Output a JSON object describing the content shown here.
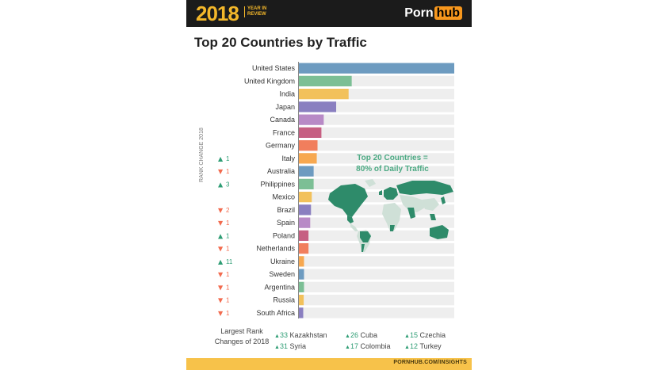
{
  "header": {
    "year": "2018",
    "year_in_review": "YEAR IN REVIEW",
    "brand_part1": "Porn",
    "brand_part2": "hub"
  },
  "title": "Top 20 Countries by Traffic",
  "callout": {
    "line1": "Top 20 Countries =",
    "line2": "80% of Daily Traffic"
  },
  "rank_axis_label": "RANK CHANGE 2018",
  "largest_rank_label": {
    "line1": "Largest Rank",
    "line2": "Changes of 2018"
  },
  "largest_changes": [
    {
      "change": "33",
      "country": "Kazakhstan"
    },
    {
      "change": "31",
      "country": "Syria"
    },
    {
      "change": "26",
      "country": "Cuba"
    },
    {
      "change": "17",
      "country": "Colombia"
    },
    {
      "change": "15",
      "country": "Czechia"
    },
    {
      "change": "12",
      "country": "Turkey"
    }
  ],
  "footer": "PORNHUB.COM/INSIGHTS",
  "colors": {
    "up": "#2e9d74",
    "down": "#f26b4f",
    "map_highlight": "#2e8b6a",
    "map_other": "#cfe0d7"
  },
  "chart_data": {
    "type": "bar",
    "orientation": "horizontal",
    "categories": [
      "United States",
      "United Kingdom",
      "India",
      "Japan",
      "Canada",
      "France",
      "Germany",
      "Italy",
      "Australia",
      "Philippines",
      "Mexico",
      "Brazil",
      "Spain",
      "Poland",
      "Netherlands",
      "Ukraine",
      "Sweden",
      "Argentina",
      "Russia",
      "South Africa"
    ],
    "values": [
      100,
      34,
      32,
      24,
      16,
      14.5,
      12,
      11.5,
      9.5,
      9.5,
      8.3,
      7.8,
      7.3,
      6.2,
      6.2,
      3.3,
      3.3,
      3.3,
      3.1,
      2.8
    ],
    "bar_colors": [
      "#6d9bc0",
      "#7cbf95",
      "#f2c15b",
      "#8a7fc0",
      "#b88ac6",
      "#c65f82",
      "#f17e5d",
      "#f7a850",
      "#6d9bc0",
      "#7cbf95",
      "#f2c15b",
      "#8a7fc0",
      "#b88ac6",
      "#c65f82",
      "#f17e5d",
      "#f7a850",
      "#6d9bc0",
      "#7cbf95",
      "#f2c15b",
      "#8a7fc0"
    ],
    "rank_change": [
      {
        "dir": "",
        "value": ""
      },
      {
        "dir": "",
        "value": ""
      },
      {
        "dir": "",
        "value": ""
      },
      {
        "dir": "",
        "value": ""
      },
      {
        "dir": "",
        "value": ""
      },
      {
        "dir": "",
        "value": ""
      },
      {
        "dir": "",
        "value": ""
      },
      {
        "dir": "up",
        "value": "1"
      },
      {
        "dir": "down",
        "value": "1"
      },
      {
        "dir": "up",
        "value": "3"
      },
      {
        "dir": "",
        "value": ""
      },
      {
        "dir": "down",
        "value": "2"
      },
      {
        "dir": "down",
        "value": "1"
      },
      {
        "dir": "up",
        "value": "1"
      },
      {
        "dir": "down",
        "value": "1"
      },
      {
        "dir": "up",
        "value": "11"
      },
      {
        "dir": "down",
        "value": "1"
      },
      {
        "dir": "down",
        "value": "1"
      },
      {
        "dir": "down",
        "value": "1"
      },
      {
        "dir": "down",
        "value": "1"
      }
    ],
    "xlim": [
      0,
      100
    ],
    "title": "Top 20 Countries by Traffic",
    "grid": false
  }
}
